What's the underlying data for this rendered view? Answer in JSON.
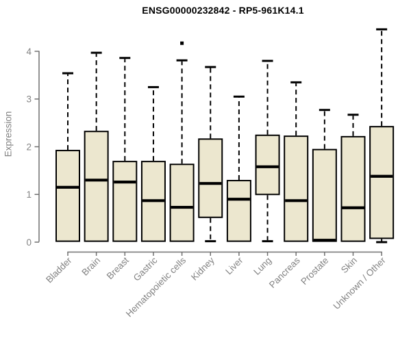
{
  "chart_data": {
    "type": "boxplot",
    "title": "ENSG00000232842 - RP5-961K14.1",
    "ylabel": "Expression",
    "xlabel": "",
    "ylim": [
      0,
      4.5
    ],
    "yticks": [
      0,
      1,
      2,
      3,
      4
    ],
    "grid": false,
    "legend": null,
    "categories": [
      "Bladder",
      "Brain",
      "Breast",
      "Gastric",
      "Hematopoietic cells",
      "Kidney",
      "Liver",
      "Lung",
      "Pancreas",
      "Prostate",
      "Skin",
      "Unknown / Other"
    ],
    "series": [
      {
        "name": "Bladder",
        "min": 0.02,
        "q1": 0.02,
        "median": 1.15,
        "q3": 1.92,
        "max": 3.54,
        "outliers": []
      },
      {
        "name": "Brain",
        "min": 0.02,
        "q1": 0.02,
        "median": 1.3,
        "q3": 2.32,
        "max": 3.97,
        "outliers": []
      },
      {
        "name": "Breast",
        "min": 0.02,
        "q1": 0.02,
        "median": 1.26,
        "q3": 1.69,
        "max": 3.86,
        "outliers": []
      },
      {
        "name": "Gastric",
        "min": 0.02,
        "q1": 0.02,
        "median": 0.87,
        "q3": 1.69,
        "max": 3.25,
        "outliers": []
      },
      {
        "name": "Hematopoietic cells",
        "min": 0.02,
        "q1": 0.02,
        "median": 0.73,
        "q3": 1.63,
        "max": 3.81,
        "outliers": [
          4.17
        ]
      },
      {
        "name": "Kidney",
        "min": 0.02,
        "q1": 0.52,
        "median": 1.23,
        "q3": 2.16,
        "max": 3.67,
        "outliers": []
      },
      {
        "name": "Liver",
        "min": 0.02,
        "q1": 0.02,
        "median": 0.9,
        "q3": 1.29,
        "max": 3.05,
        "outliers": []
      },
      {
        "name": "Lung",
        "min": 0.02,
        "q1": 1.0,
        "median": 1.58,
        "q3": 2.24,
        "max": 3.8,
        "outliers": []
      },
      {
        "name": "Pancreas",
        "min": 0.02,
        "q1": 0.02,
        "median": 0.87,
        "q3": 2.22,
        "max": 3.35,
        "outliers": []
      },
      {
        "name": "Prostate",
        "min": 0.02,
        "q1": 0.02,
        "median": 0.04,
        "q3": 1.94,
        "max": 2.77,
        "outliers": []
      },
      {
        "name": "Skin",
        "min": 0.02,
        "q1": 0.02,
        "median": 0.72,
        "q3": 2.21,
        "max": 2.67,
        "outliers": []
      },
      {
        "name": "Unknown / Other",
        "min": 0.0,
        "q1": 0.08,
        "median": 1.38,
        "q3": 2.42,
        "max": 4.46,
        "outliers": []
      }
    ],
    "style": {
      "box_fill": "#ece7cf",
      "box_border": "#000000",
      "median_color": "#000000",
      "whisker_color": "#000000",
      "outlier_color": "#000000",
      "axis_color": "#6f6f6f",
      "label_color": "#828282",
      "title_color": "#000000"
    }
  }
}
